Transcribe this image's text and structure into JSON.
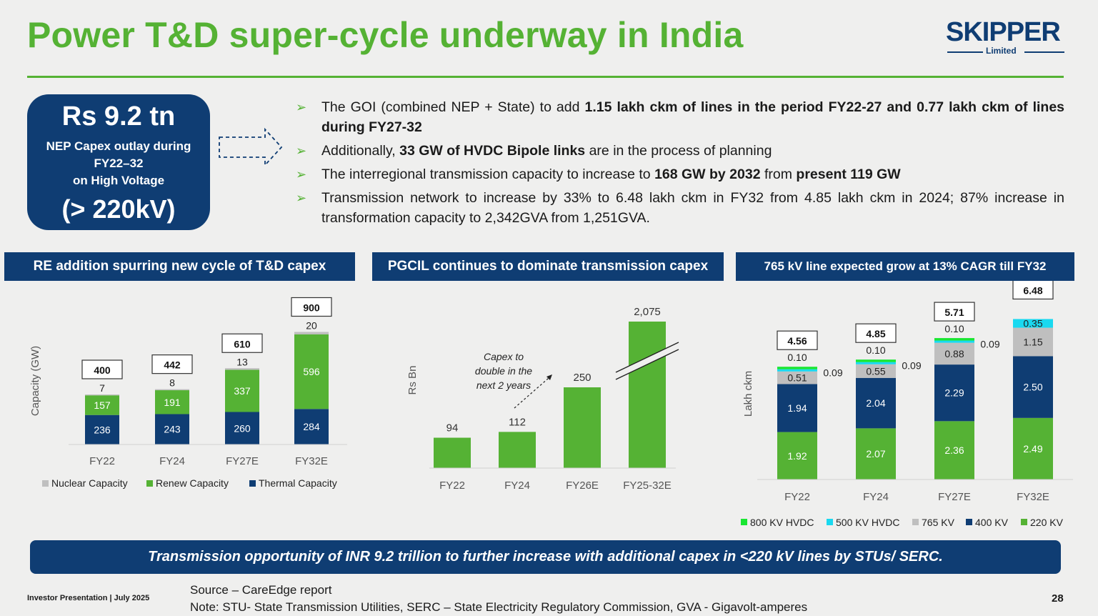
{
  "title": "Power T&D super-cycle underway in India",
  "logo": {
    "name": "SKIPPER",
    "sub": "Limited"
  },
  "capex_box": {
    "amount": "Rs 9.2 tn",
    "description": "NEP Capex outlay during\nFY22–32\non High Voltage",
    "voltage": "(> 220kV)"
  },
  "bullets": [
    [
      {
        "t": "The GOI (combined NEP + State) to add ",
        "b": false
      },
      {
        "t": "1.15 lakh ckm of lines in the period FY22-27 and 0.77 lakh ckm of lines during FY27-32",
        "b": true
      }
    ],
    [
      {
        "t": "Additionally, ",
        "b": false
      },
      {
        "t": "33 GW of HVDC Bipole links",
        "b": true
      },
      {
        "t": " are in the process of planning",
        "b": false
      }
    ],
    [
      {
        "t": "The interregional transmission capacity to increase to ",
        "b": false
      },
      {
        "t": "168 GW by 2032",
        "b": true
      },
      {
        "t": " from ",
        "b": false
      },
      {
        "t": "present 119 GW",
        "b": true
      }
    ],
    [
      {
        "t": "Transmission network to increase by 33% to 6.48 lakh ckm in FY32 from 4.85 lakh ckm in 2024; 87% increase in transformation capacity to 2,342GVA from 1,251GVA.",
        "b": false
      }
    ]
  ],
  "panels": {
    "left": "RE addition spurring new cycle of T&D capex",
    "middle": "PGCIL continues to dominate transmission capex",
    "right": "765 kV  line expected grow at 13% CAGR till FY32"
  },
  "colors": {
    "green": "#55b234",
    "navy": "#0f3d73",
    "grey": "#bfbfbf",
    "hvdc800": "#19e632",
    "hvdc500": "#19d9f0"
  },
  "chart_data": [
    {
      "type": "bar",
      "stacked": true,
      "categories": [
        "FY22",
        "FY24",
        "FY27E",
        "FY32E"
      ],
      "series": [
        {
          "name": "Thermal Capacity",
          "values": [
            236,
            243,
            260,
            284
          ],
          "color": "#0f3d73"
        },
        {
          "name": "Renew Capacity",
          "values": [
            157,
            191,
            337,
            596
          ],
          "color": "#55b234"
        },
        {
          "name": "Nuclear Capacity",
          "values": [
            7,
            8,
            13,
            20
          ],
          "color": "#bfbfbf"
        }
      ],
      "totals": [
        400,
        442,
        610,
        900
      ],
      "ylabel": "Capacity (GW)",
      "legend": "bottom"
    },
    {
      "type": "bar",
      "categories": [
        "FY22",
        "FY24",
        "FY26E",
        "FY25-32E"
      ],
      "values": [
        94,
        112,
        250,
        2075
      ],
      "labels": [
        "94",
        "112",
        "250",
        "2,075"
      ],
      "axis_break": "FY25-32E",
      "ylabel": "Rs Bn",
      "annotation": "Capex to\ndouble in the\nnext 2 years",
      "color": "#55b234"
    },
    {
      "type": "bar",
      "stacked": true,
      "categories": [
        "FY22",
        "FY24",
        "FY27E",
        "FY32E"
      ],
      "series": [
        {
          "name": "220 KV",
          "values": [
            1.92,
            2.07,
            2.36,
            2.49
          ],
          "color": "#55b234"
        },
        {
          "name": "400 KV",
          "values": [
            1.94,
            2.04,
            2.29,
            2.5
          ],
          "color": "#0f3d73"
        },
        {
          "name": "765 KV",
          "values": [
            0.51,
            0.55,
            0.88,
            1.15
          ],
          "color": "#bfbfbf"
        },
        {
          "name": "500 KV HVDC",
          "values": [
            0.09,
            0.09,
            0.09,
            0.35
          ],
          "color": "#19d9f0"
        },
        {
          "name": "800 KV HVDC",
          "values": [
            0.1,
            0.1,
            0.1,
            0.0
          ],
          "color": "#19e632"
        }
      ],
      "totals": [
        "4.56",
        "4.85",
        "5.71",
        "6.48"
      ],
      "ylabel": "Lakh ckm",
      "legend": "bottom",
      "legend_order": [
        "800 KV HVDC",
        "500 KV HVDC",
        "765 KV",
        "400 KV",
        "220 KV"
      ]
    }
  ],
  "banner": "Transmission opportunity of INR 9.2 trillion to further increase with additional capex in <220 kV lines  by STUs/ SERC.",
  "footer": {
    "left": "Investor Presentation | July 2025",
    "source": "Source – CareEdge report",
    "note": "Note: STU- State Transmission Utilities, SERC – State Electricity Regulatory Commission, GVA -  Gigavolt-amperes",
    "page": "28"
  }
}
